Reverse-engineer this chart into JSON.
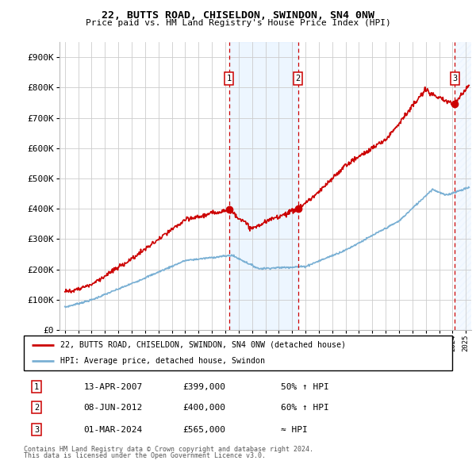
{
  "title1": "22, BUTTS ROAD, CHISELDON, SWINDON, SN4 0NW",
  "title2": "Price paid vs. HM Land Registry's House Price Index (HPI)",
  "ylim_max": 950000,
  "yticks": [
    0,
    100000,
    200000,
    300000,
    400000,
    500000,
    600000,
    700000,
    800000,
    900000
  ],
  "ytick_labels": [
    "£0",
    "£100K",
    "£200K",
    "£300K",
    "£400K",
    "£500K",
    "£600K",
    "£700K",
    "£800K",
    "£900K"
  ],
  "background_color": "#ffffff",
  "grid_color": "#cccccc",
  "sale1_label": "13-APR-2007",
  "sale1_price_str": "£399,000",
  "sale1_hpi": "50% ↑ HPI",
  "sale2_label": "08-JUN-2012",
  "sale2_price_str": "£400,000",
  "sale2_hpi": "60% ↑ HPI",
  "sale3_label": "01-MAR-2024",
  "sale3_price_str": "£565,000",
  "sale3_hpi": "≈ HPI",
  "legend_line1": "22, BUTTS ROAD, CHISELDON, SWINDON, SN4 0NW (detached house)",
  "legend_line2": "HPI: Average price, detached house, Swindon",
  "footer1": "Contains HM Land Registry data © Crown copyright and database right 2024.",
  "footer2": "This data is licensed under the Open Government Licence v3.0.",
  "hpi_color": "#7ab0d4",
  "price_color": "#cc0000",
  "vline_color": "#cc0000",
  "shade_color": "#ddeeff",
  "sale1_x": 2007.28,
  "sale2_x": 2012.44,
  "sale3_x": 2024.17,
  "xmin": 1994.6,
  "xmax": 2025.4
}
